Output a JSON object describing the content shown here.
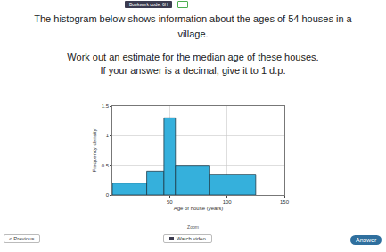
{
  "header": {
    "code_label": "Bookwork code: 6H"
  },
  "question": {
    "text": "The histogram below shows information about the ages of 54 houses in a village."
  },
  "instructions": {
    "lines": [
      "Work out an estimate for the median age of these houses.",
      "If your answer is a decimal, give it to 1 d.p."
    ]
  },
  "controls": {
    "zoom": "Zoom",
    "previous": "< Previous",
    "video": "Watch video",
    "answer": "Answer"
  },
  "chart_data": {
    "type": "histogram",
    "bins": [
      0,
      30,
      45,
      55,
      85,
      125
    ],
    "values": [
      0.2,
      0.4,
      1.3,
      0.5,
      0.35
    ],
    "color": "#35b0dc",
    "xlabel": "Age of house (years)",
    "ylabel": "Frequency density",
    "xlim": [
      0,
      150
    ],
    "xticks": [
      50,
      100,
      150
    ],
    "ylim": [
      0,
      1.5
    ],
    "yticks": [
      0,
      0.5,
      1,
      1.5
    ],
    "grid": true
  }
}
